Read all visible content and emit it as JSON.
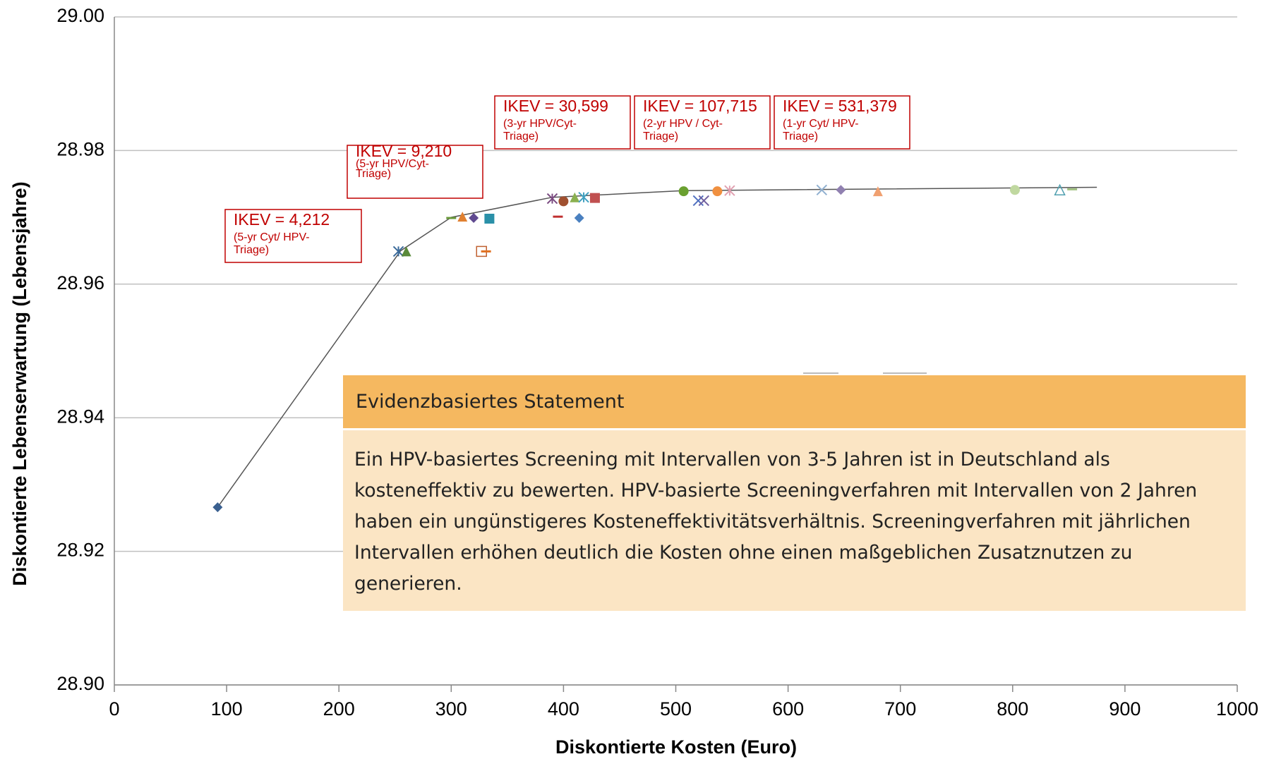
{
  "chart_data": {
    "type": "scatter",
    "xlabel": "Diskontierte Kosten (Euro)",
    "ylabel": "Diskontierte Lebenserwartung (Lebensjahre)",
    "xlim": [
      0,
      1000
    ],
    "ylim": [
      28.9,
      29.0
    ],
    "xticks": [
      0,
      100,
      200,
      300,
      400,
      500,
      600,
      700,
      800,
      900,
      1000
    ],
    "yticks": [
      {
        "value": 28.9,
        "label": "28.90"
      },
      28.92,
      28.94,
      28.96,
      28.98,
      {
        "value": 29.0,
        "label": "29.00"
      }
    ],
    "grid": true,
    "series": [
      {
        "kind": "line",
        "color": "#555555",
        "x": [
          92,
          255,
          300,
          390,
          507,
          875
        ],
        "values": [
          28.9266,
          28.965,
          28.97,
          28.973,
          28.974,
          28.9745
        ]
      },
      {
        "kind": "points",
        "x": [
          92,
          253,
          260,
          300,
          310,
          320,
          334,
          327,
          331,
          390,
          400,
          395,
          410,
          418,
          428,
          414,
          507,
          520,
          525,
          537,
          548,
          630,
          647,
          680,
          802,
          842,
          853
        ],
        "values": [
          28.9266,
          28.9649,
          28.9649,
          28.9699,
          28.9701,
          28.9699,
          28.9698,
          28.9649,
          28.9649,
          28.9728,
          28.9724,
          28.9701,
          28.973,
          28.973,
          28.9729,
          28.9699,
          28.9739,
          28.9725,
          28.9725,
          28.9739,
          28.974,
          28.9741,
          28.9741,
          28.9739,
          28.9741,
          28.9741,
          28.9742
        ],
        "markers": [
          "diamond",
          "asterisk",
          "triangle",
          "dash",
          "triangle",
          "diamond",
          "square",
          "square-open",
          "dash",
          "asterisk",
          "circle",
          "dash",
          "triangle",
          "asterisk",
          "square",
          "diamond",
          "circle",
          "x",
          "x",
          "circle",
          "asterisk",
          "x",
          "diamond",
          "triangle",
          "circle",
          "triangle-open",
          "dash"
        ],
        "colors": [
          "#3a6090",
          "#3a6a9a",
          "#5a8a3a",
          "#6a9a3a",
          "#e08030",
          "#604a90",
          "#2a90a8",
          "#c06030",
          "#e07020",
          "#7a4a80",
          "#a05030",
          "#c03030",
          "#8ab050",
          "#40a0c0",
          "#c05050",
          "#4a80c0",
          "#6aa030",
          "#5070c0",
          "#7060a0",
          "#f09040",
          "#e0a0b0",
          "#90b0d0",
          "#9080b0",
          "#f0a070",
          "#c0d8a0",
          "#50a0b0",
          "#a0c080"
        ]
      }
    ],
    "annotations": [
      {
        "label": "IKEV = 4,212",
        "lines": [
          "(5-yr Cyt/ HPV-",
          "Triage)"
        ]
      },
      {
        "label": "IKEV = 9,210",
        "lines": [
          "(5-yr HPV/Cyt-",
          "Triage)"
        ]
      },
      {
        "label": "IKEV = 30,599",
        "lines": [
          "(3-yr HPV/Cyt-",
          "Triage)"
        ]
      },
      {
        "label": "IKEV = 107,715",
        "lines": [
          "(2-yr HPV / Cyt-",
          "Triage)"
        ]
      },
      {
        "label": "IKEV = 531,379",
        "lines": [
          "(1-yr Cyt/ HPV-",
          "Triage)"
        ]
      }
    ]
  },
  "statement": {
    "title": "Evidenzbasiertes Statement",
    "text": "Ein HPV-basiertes Screening mit Intervallen von 3-5 Jahren ist in Deutschland als kosteneffektiv zu bewerten. HPV-basierte Screeningverfahren mit Intervallen von 2 Jahren haben ein ungünstigeres Kosteneffektivitätsverhältnis. Screeningverfahren mit jährlichen Intervallen erhöhen deutlich die Kosten ohne einen maßgeblichen Zusatznutzen zu generieren."
  }
}
